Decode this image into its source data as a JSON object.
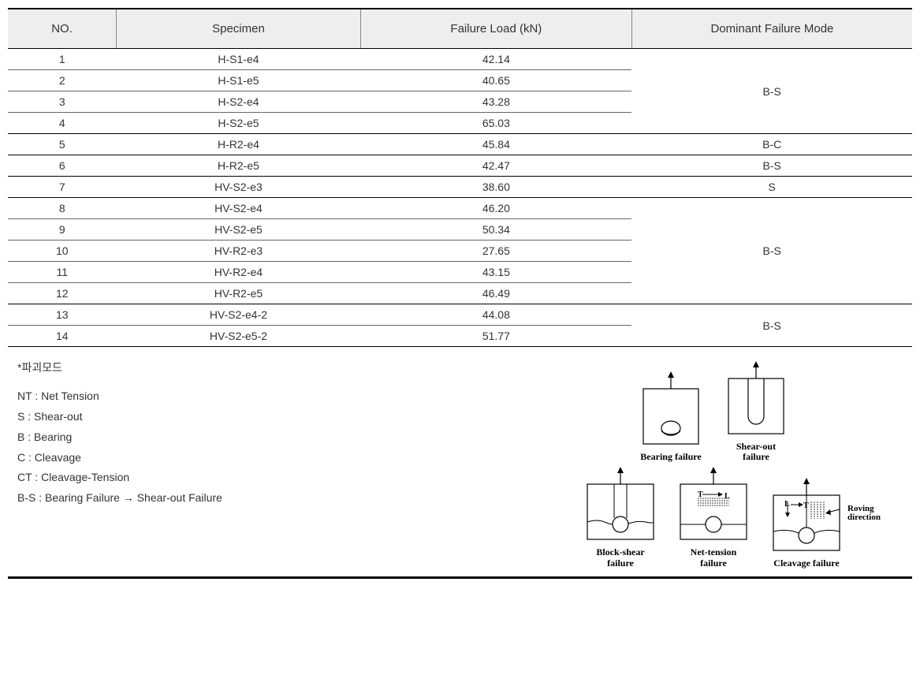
{
  "table": {
    "columns": [
      "NO.",
      "Specimen",
      "Failure Load (kN)",
      "Dominant Failure Mode"
    ],
    "col_widths_pct": [
      12,
      27,
      30,
      31
    ],
    "header_bg": "#eeeeee",
    "header_fontsize": 15,
    "cell_fontsize": 14,
    "border_color_major": "#000000",
    "border_color_minor": "#666666",
    "rows": [
      {
        "no": "1",
        "spec": "H-S1-e4",
        "load": "42.14"
      },
      {
        "no": "2",
        "spec": "H-S1-e5",
        "load": "40.65"
      },
      {
        "no": "3",
        "spec": "H-S2-e4",
        "load": "43.28"
      },
      {
        "no": "4",
        "spec": "H-S2-e5",
        "load": "65.03"
      },
      {
        "no": "5",
        "spec": "H-R2-e4",
        "load": "45.84"
      },
      {
        "no": "6",
        "spec": "H-R2-e5",
        "load": "42.47"
      },
      {
        "no": "7",
        "spec": "HV-S2-e3",
        "load": "38.60"
      },
      {
        "no": "8",
        "spec": "HV-S2-e4",
        "load": "46.20"
      },
      {
        "no": "9",
        "spec": "HV-S2-e5",
        "load": "50.34"
      },
      {
        "no": "10",
        "spec": "HV-R2-e3",
        "load": "27.65"
      },
      {
        "no": "11",
        "spec": "HV-R2-e4",
        "load": "43.15"
      },
      {
        "no": "12",
        "spec": "HV-R2-e5",
        "load": "46.49"
      },
      {
        "no": "13",
        "spec": "HV-S2-e4-2",
        "load": "44.08"
      },
      {
        "no": "14",
        "spec": "HV-S2-e5-2",
        "load": "51.77"
      }
    ],
    "mode_groups": [
      {
        "start": 0,
        "span": 4,
        "label": "B-S"
      },
      {
        "start": 4,
        "span": 1,
        "label": "B-C"
      },
      {
        "start": 5,
        "span": 1,
        "label": "B-S"
      },
      {
        "start": 6,
        "span": 1,
        "label": "S"
      },
      {
        "start": 7,
        "span": 5,
        "label": "B-S"
      },
      {
        "start": 12,
        "span": 2,
        "label": "B-S"
      }
    ]
  },
  "legend": {
    "title": "*파괴모드",
    "items": [
      "NT : Net Tension",
      "S : Shear-out",
      "B : Bearing",
      "C : Cleavage",
      "CT : Cleavage-Tension",
      "B-S : Bearing Failure → Shear-out Failure"
    ],
    "fontsize": 14
  },
  "diagrams": {
    "box_stroke": "#000000",
    "box_fill": "#ffffff",
    "label_fontsize": 12,
    "label_font": "Times New Roman",
    "roving_label": "Roving direction",
    "items": [
      {
        "key": "bearing",
        "label": "Bearing failure"
      },
      {
        "key": "shearout",
        "label": "Shear-out\nfailure"
      },
      {
        "key": "blockshear",
        "label": "Block-shear\nfailure"
      },
      {
        "key": "nettension",
        "label": "Net-tension\nfailure"
      },
      {
        "key": "cleavage",
        "label": "Cleavage failure"
      }
    ]
  }
}
